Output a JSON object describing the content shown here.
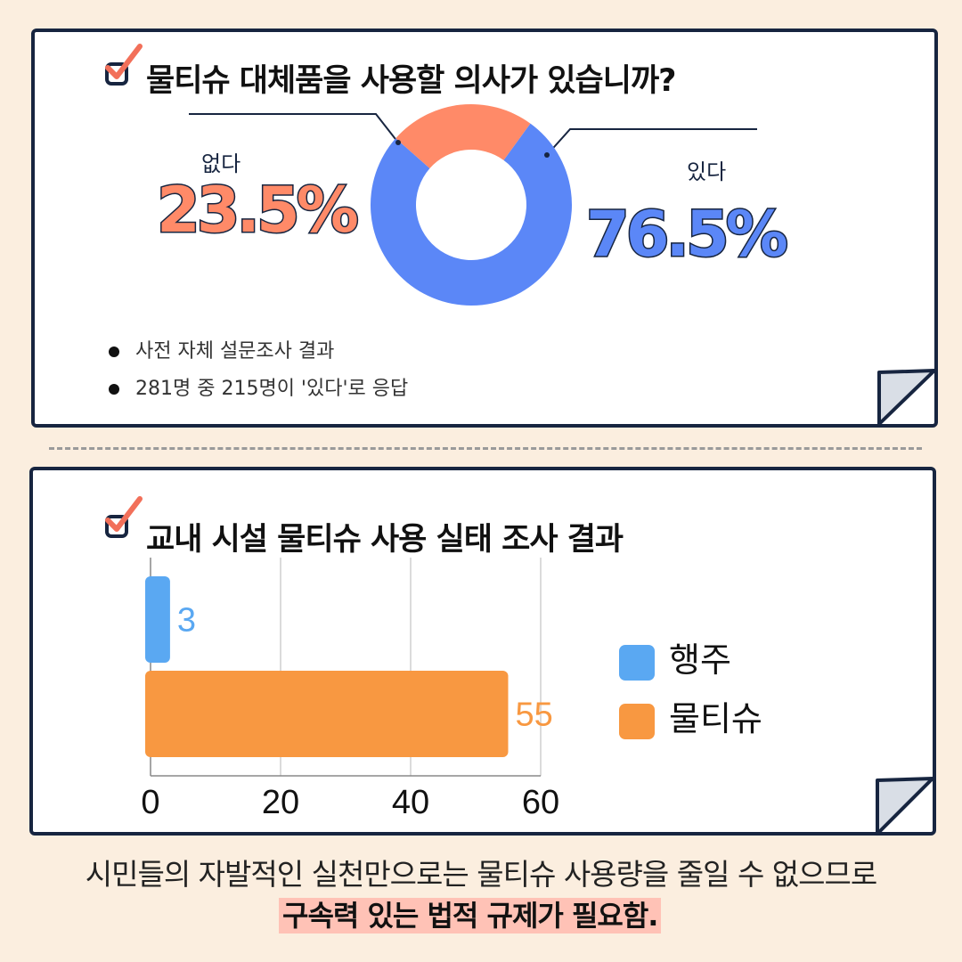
{
  "survey": {
    "title": "물티슈 대체품을 사용할 의사가 있습니까?",
    "no_label": "없다",
    "no_percent": "23.5%",
    "yes_label": "있다",
    "yes_percent": "76.5%",
    "notes": [
      "사전 자체 설문조사 결과",
      "281명 중 215명이 '있다'로 응답"
    ]
  },
  "usage": {
    "title": "교내 시설 물티슈 사용 실태 조사 결과"
  },
  "footer": {
    "line1": "시민들의 자발적인 실천만으로는 물티슈 사용량을 줄일 수 없으므로",
    "line2": "구속력 있는 법적 규제가 필요함."
  },
  "colors": {
    "accent_blue": "#5B87F7",
    "accent_coral": "#FF8A68",
    "bar_blue": "#5AA8F2",
    "bar_orange": "#F89841",
    "navy": "#172540",
    "check": "#F2705A"
  },
  "chart_data": [
    {
      "type": "pie",
      "categories": [
        "있다",
        "없다"
      ],
      "values": [
        76.5,
        23.5
      ],
      "colors": [
        "#5B87F7",
        "#FF8A68"
      ]
    },
    {
      "type": "bar",
      "orientation": "horizontal",
      "series": [
        {
          "name": "행주",
          "values": [
            3
          ],
          "color": "#5AA8F2"
        },
        {
          "name": "물티슈",
          "values": [
            55
          ],
          "color": "#F89841"
        }
      ],
      "xlim": [
        0,
        60
      ],
      "xticks": [
        "0",
        "20",
        "40",
        "60"
      ],
      "data_labels": [
        "3",
        "55"
      ],
      "grid": true,
      "legend": "right"
    }
  ]
}
